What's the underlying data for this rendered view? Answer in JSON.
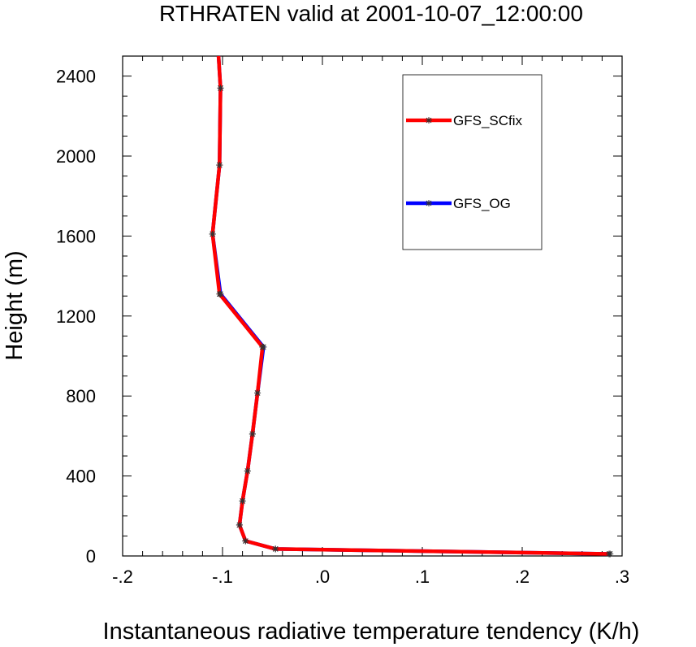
{
  "chart_data": {
    "type": "line",
    "title": "RTHRATEN valid at 2001-10-07_12:00:00",
    "xlabel": "Instantaneous radiative temperature tendency (K/h)",
    "ylabel": "Height (m)",
    "xlim": [
      -0.2,
      0.3
    ],
    "ylim": [
      0,
      2500
    ],
    "x_ticks": [
      -0.2,
      -0.1,
      0.0,
      0.1,
      0.2,
      0.3
    ],
    "x_tick_labels": [
      "-.2",
      "-.1",
      ".0",
      ".1",
      ".2",
      ".3"
    ],
    "y_ticks": [
      0,
      400,
      800,
      1200,
      1600,
      2000,
      2400
    ],
    "y_tick_labels": [
      "0",
      "400",
      "800",
      "1200",
      "1600",
      "2000",
      "2400"
    ],
    "grid": false,
    "legend_position": "top-right",
    "series": [
      {
        "name": "GFS_SCfix",
        "color": "#ff0000",
        "points": [
          {
            "x": 0.287,
            "y": 10
          },
          {
            "x": -0.047,
            "y": 35
          },
          {
            "x": -0.077,
            "y": 75
          },
          {
            "x": -0.083,
            "y": 155
          },
          {
            "x": -0.08,
            "y": 275
          },
          {
            "x": -0.075,
            "y": 425
          },
          {
            "x": -0.07,
            "y": 610
          },
          {
            "x": -0.065,
            "y": 815
          },
          {
            "x": -0.06,
            "y": 1045
          },
          {
            "x": -0.103,
            "y": 1310
          },
          {
            "x": -0.11,
            "y": 1610
          },
          {
            "x": -0.103,
            "y": 1955
          },
          {
            "x": -0.102,
            "y": 2340
          },
          {
            "x": -0.104,
            "y": 2500
          }
        ]
      },
      {
        "name": "GFS_OG",
        "color": "#0000ff",
        "points": [
          {
            "x": 0.288,
            "y": 10
          },
          {
            "x": -0.047,
            "y": 35
          },
          {
            "x": -0.077,
            "y": 75
          },
          {
            "x": -0.083,
            "y": 155
          },
          {
            "x": -0.08,
            "y": 275
          },
          {
            "x": -0.075,
            "y": 425
          },
          {
            "x": -0.07,
            "y": 610
          },
          {
            "x": -0.065,
            "y": 815
          },
          {
            "x": -0.059,
            "y": 1045
          },
          {
            "x": -0.102,
            "y": 1310
          },
          {
            "x": -0.11,
            "y": 1610
          },
          {
            "x": -0.103,
            "y": 1955
          },
          {
            "x": -0.102,
            "y": 2340
          },
          {
            "x": -0.104,
            "y": 2500
          }
        ]
      }
    ]
  }
}
